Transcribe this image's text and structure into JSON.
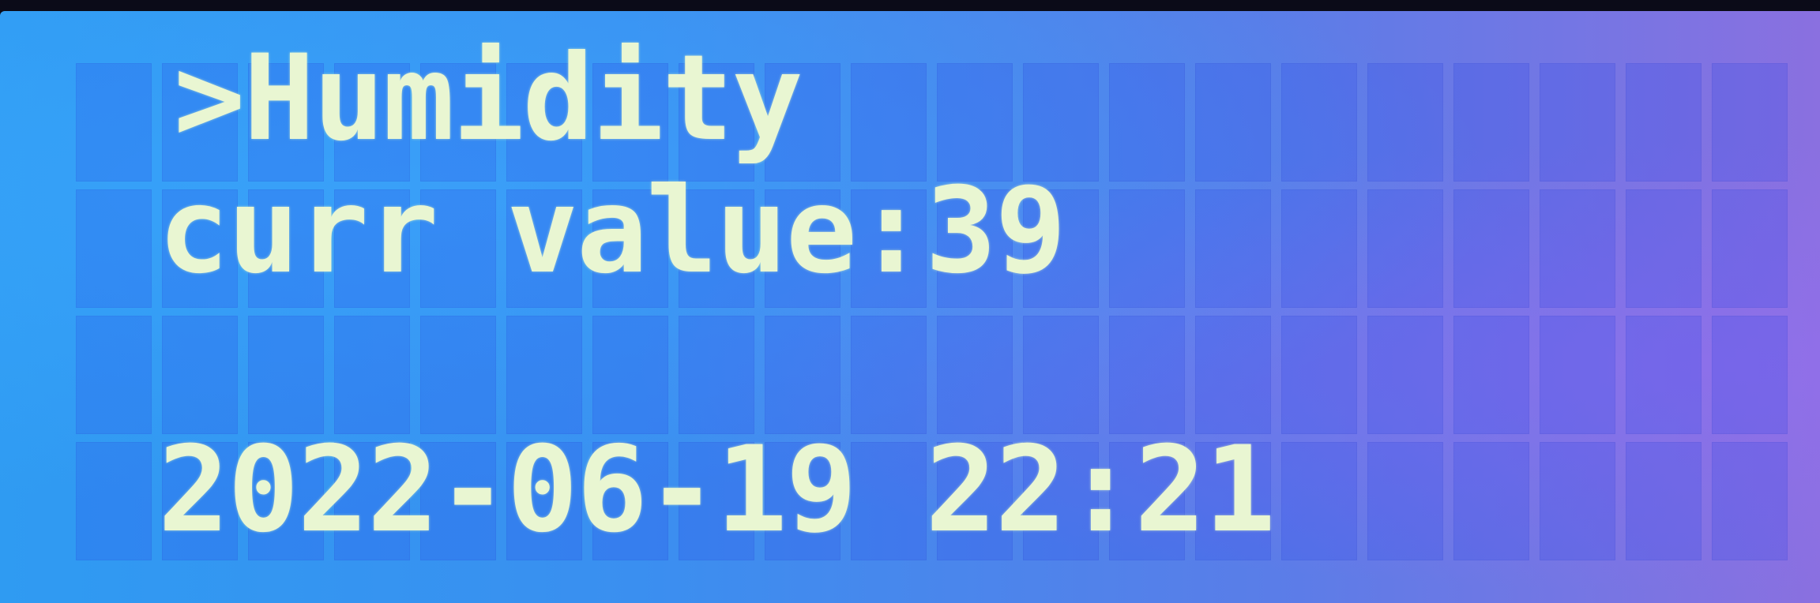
{
  "display": {
    "type": "character-lcd",
    "colors": {
      "background": "#3a8ff0",
      "pixel_on": "#e9f6d2",
      "cell_off": "#2f5fe0"
    },
    "lines": [
      ">Humidity",
      "curr value:39",
      "",
      "2022-06-19 22:21"
    ]
  }
}
